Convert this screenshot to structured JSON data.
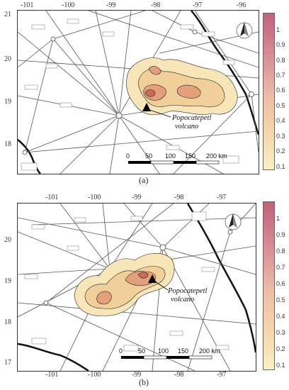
{
  "panels": [
    {
      "caption": "(a)",
      "lon_ticks_top": [
        "-101",
        "-100",
        "-99",
        "-98",
        "-97",
        "-96"
      ],
      "lat_ticks_left": [
        "21",
        "20",
        "19",
        "18"
      ],
      "volcano_label_line1": "Popocatepetl",
      "volcano_label_line2": "volcano",
      "scale_labels": [
        "0",
        "50",
        "100",
        "150",
        "200 km"
      ]
    },
    {
      "caption": "(b)",
      "lon_ticks_top": [
        "-101",
        "-100",
        "-99",
        "-98",
        "-97"
      ],
      "lon_ticks_bottom": [
        "-101",
        "-100",
        "-99",
        "-98",
        "-97"
      ],
      "lat_ticks_left": [
        "20",
        "19",
        "18",
        "17"
      ],
      "volcano_label_line1": "Popocatepetl",
      "volcano_label_line2": "volcano",
      "scale_labels": [
        "0",
        "50",
        "100",
        "150",
        "200 km"
      ]
    }
  ],
  "colorbar": {
    "labels": [
      "1",
      "0.9",
      "0.8",
      "0.7",
      "0.6",
      "0.5",
      "0.4",
      "0.3",
      "0.2",
      "0.1"
    ],
    "colors": [
      "#c0627a",
      "#cb7486",
      "#d68993",
      "#e09e9e",
      "#e8b0a4",
      "#eec0a8",
      "#f2cda8",
      "#f5d9ad",
      "#f8e4b6",
      "#fbefc9"
    ]
  },
  "map_colors": {
    "ash_low": "#f8e6b8",
    "ash_mid": "#f1cf9a",
    "ash_high": "#e3a07a",
    "ash_peak": "#c96a5c",
    "route_line": "#555555",
    "coast": "#111111"
  }
}
